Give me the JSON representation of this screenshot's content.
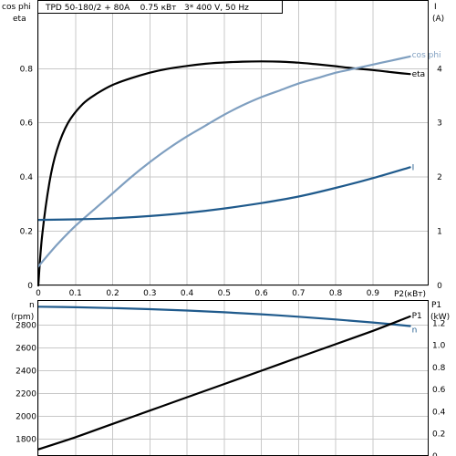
{
  "chart_data": [
    {
      "type": "line",
      "title": "TPD 50-180/2 + 80A    0.75 кВт   3* 400 V, 50 Hz",
      "xlabel": "P2(кВт)",
      "ylabel_left_top": "cos phi",
      "ylabel_left_bottom": "eta",
      "ylabel_right_top": "I",
      "ylabel_right_bottom": "(A)",
      "xlim": [
        0,
        1.05
      ],
      "ylim_left": [
        0,
        1.05
      ],
      "ylim_right": [
        0,
        5.25
      ],
      "x_ticks": [
        0,
        0.1,
        0.2,
        0.3,
        0.4,
        0.5,
        0.6,
        0.7,
        0.8,
        0.9
      ],
      "x_tick_labels": [
        "0",
        "0.1",
        "0.2",
        "0.3",
        "0.4",
        "0.5",
        "0.6",
        "0.7",
        "0.8",
        "0.9"
      ],
      "y_left_ticks": [
        0,
        0.2,
        0.4,
        0.6,
        0.8
      ],
      "y_left_tick_labels": [
        "0",
        "0.2",
        "0.4",
        "0.6",
        "0.8"
      ],
      "y_right_ticks": [
        0,
        1,
        2,
        3,
        4
      ],
      "y_right_tick_labels": [
        "0",
        "1",
        "2",
        "3",
        "4"
      ],
      "grid": true,
      "series": [
        {
          "name": "eta",
          "axis": "left",
          "color": "#000000",
          "x": [
            0,
            0.01,
            0.03,
            0.05,
            0.08,
            0.12,
            0.16,
            0.2,
            0.25,
            0.3,
            0.35,
            0.4,
            0.45,
            0.5,
            0.55,
            0.6,
            0.65,
            0.7,
            0.75,
            0.8,
            0.85,
            0.9,
            0.95,
            1.0
          ],
          "y": [
            0,
            0.18,
            0.38,
            0.5,
            0.6,
            0.67,
            0.71,
            0.74,
            0.765,
            0.785,
            0.8,
            0.81,
            0.818,
            0.823,
            0.826,
            0.827,
            0.826,
            0.822,
            0.816,
            0.809,
            0.801,
            0.795,
            0.787,
            0.78
          ]
        },
        {
          "name": "cos phi",
          "axis": "left",
          "color": "#7f9fc0",
          "x": [
            0,
            0.05,
            0.1,
            0.15,
            0.2,
            0.25,
            0.3,
            0.35,
            0.4,
            0.45,
            0.5,
            0.55,
            0.6,
            0.65,
            0.7,
            0.75,
            0.8,
            0.85,
            0.9,
            0.95,
            1.0
          ],
          "y": [
            0.07,
            0.15,
            0.22,
            0.28,
            0.34,
            0.4,
            0.455,
            0.505,
            0.55,
            0.59,
            0.63,
            0.665,
            0.695,
            0.72,
            0.745,
            0.765,
            0.785,
            0.8,
            0.815,
            0.83,
            0.845
          ]
        },
        {
          "name": "I",
          "axis": "right",
          "color": "#1f5a8c",
          "x": [
            0,
            0.1,
            0.2,
            0.3,
            0.4,
            0.5,
            0.6,
            0.7,
            0.8,
            0.9,
            1.0
          ],
          "y": [
            1.21,
            1.22,
            1.24,
            1.28,
            1.34,
            1.42,
            1.52,
            1.64,
            1.8,
            1.98,
            2.18
          ]
        }
      ],
      "labels": {
        "eta": "eta",
        "cos phi": "cos phi",
        "I": "I"
      }
    },
    {
      "type": "line",
      "ylabel_left_top": "n",
      "ylabel_left_bottom": "(rpm)",
      "ylabel_right_top": "P1",
      "ylabel_right_bottom": "(kW)",
      "xlim": [
        0,
        1.05
      ],
      "ylim_left": [
        1650,
        3010
      ],
      "ylim_right": [
        0,
        1.4
      ],
      "y_left_ticks": [
        1800,
        2000,
        2200,
        2400,
        2600,
        2800
      ],
      "y_left_tick_labels": [
        "1800",
        "2000",
        "2200",
        "2400",
        "2600",
        "2800"
      ],
      "y_right_ticks": [
        0,
        0.2,
        0.4,
        0.6,
        0.8,
        1.0,
        1.2
      ],
      "y_right_tick_labels": [
        "0",
        "0.2",
        "0.4",
        "0.6",
        "0.8",
        "1.0",
        "1.2"
      ],
      "grid": true,
      "series": [
        {
          "name": "n",
          "axis": "left",
          "color": "#1f5a8c",
          "x": [
            0,
            0.1,
            0.2,
            0.3,
            0.4,
            0.5,
            0.6,
            0.7,
            0.8,
            0.9,
            1.0
          ],
          "y": [
            2960,
            2955,
            2948,
            2938,
            2926,
            2911,
            2893,
            2872,
            2848,
            2821,
            2790
          ]
        },
        {
          "name": "P1",
          "axis": "right",
          "color": "#000000",
          "x": [
            0,
            0.1,
            0.2,
            0.3,
            0.4,
            0.5,
            0.6,
            0.7,
            0.8,
            0.9,
            1.0
          ],
          "y": [
            0.06,
            0.17,
            0.29,
            0.41,
            0.53,
            0.65,
            0.77,
            0.89,
            1.01,
            1.13,
            1.26
          ]
        }
      ],
      "labels": {
        "n": "n",
        "P1": "P1"
      }
    }
  ]
}
